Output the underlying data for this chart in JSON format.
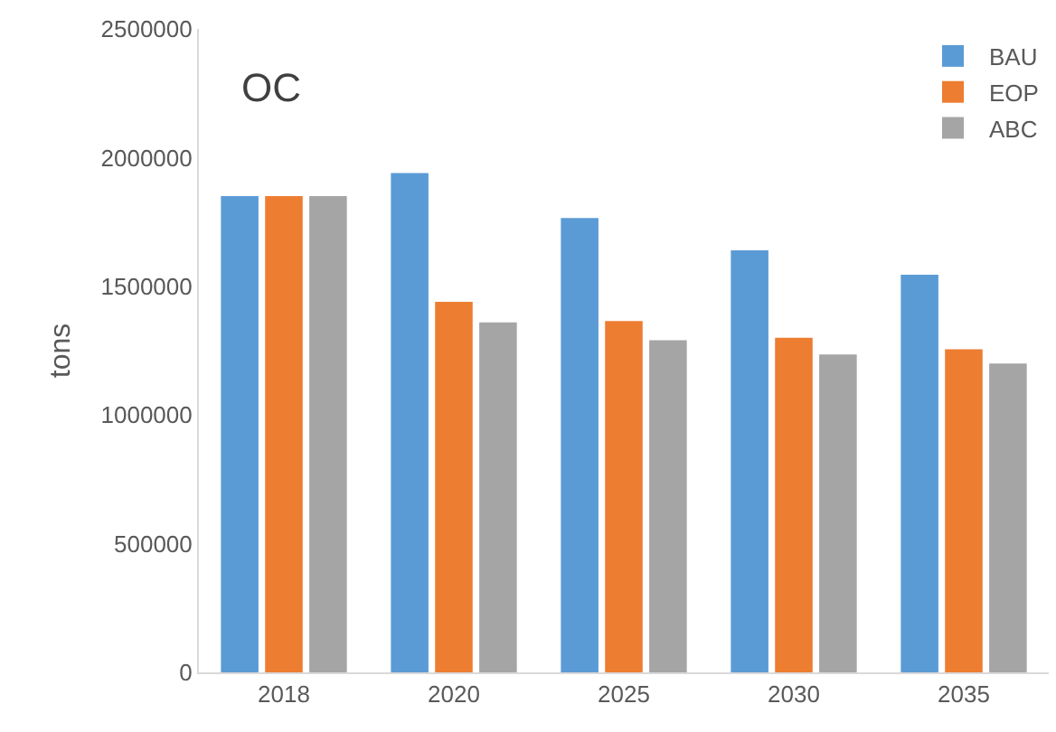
{
  "chart_data": {
    "type": "bar",
    "title": "OC",
    "ylabel": "tons",
    "categories": [
      "2018",
      "2020",
      "2025",
      "2030",
      "2035"
    ],
    "series": [
      {
        "name": "BAU",
        "color": "#5b9bd5",
        "values": [
          1850000,
          1940000,
          1765000,
          1640000,
          1545000
        ]
      },
      {
        "name": "EOP",
        "color": "#ed7d31",
        "values": [
          1850000,
          1440000,
          1365000,
          1300000,
          1255000
        ]
      },
      {
        "name": "ABC",
        "color": "#a5a5a5",
        "values": [
          1850000,
          1360000,
          1290000,
          1235000,
          1200000
        ]
      }
    ],
    "ylim": [
      0,
      2500000
    ],
    "yticks": [
      0,
      500000,
      1000000,
      1500000,
      2000000,
      2500000
    ],
    "legend": "top right"
  }
}
